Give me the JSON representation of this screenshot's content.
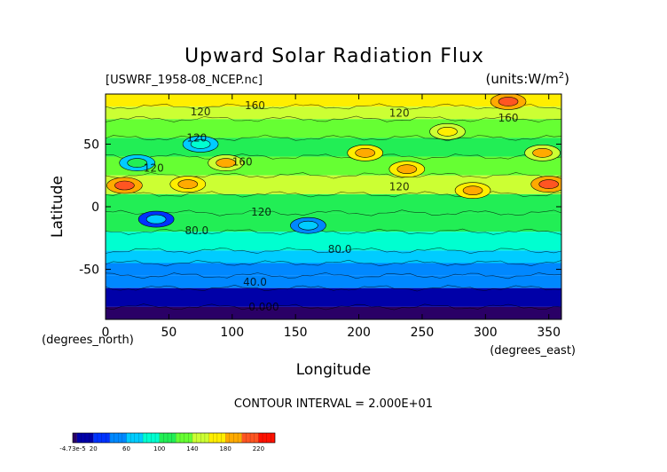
{
  "chart_data": {
    "type": "heatmap",
    "title": "Upward Solar Radiation Flux",
    "subtitle_left": "[USWRF_1958-08_NCEP.nc]",
    "subtitle_right": "(units:W/m^2)",
    "xlabel": "Longitude",
    "ylabel": "Latitude",
    "x_unit_note": "(degrees_east)",
    "y_unit_note": "(degrees_north)",
    "xlim": [
      0,
      360
    ],
    "ylim": [
      -90,
      90
    ],
    "xticks": [
      "0",
      "50",
      "100",
      "150",
      "200",
      "250",
      "300",
      "350"
    ],
    "yticks": [
      "50",
      "0",
      "-50"
    ],
    "contour_interval_text": "CONTOUR INTERVAL = 2.000E+01",
    "contour_labels": [
      {
        "text": "160",
        "lon": 118,
        "lat": 78
      },
      {
        "text": "120",
        "lon": 75,
        "lat": 73
      },
      {
        "text": "120",
        "lon": 232,
        "lat": 72
      },
      {
        "text": "160",
        "lon": 318,
        "lat": 68
      },
      {
        "text": "120",
        "lon": 72,
        "lat": 52
      },
      {
        "text": "160",
        "lon": 108,
        "lat": 33
      },
      {
        "text": "120",
        "lon": 38,
        "lat": 28
      },
      {
        "text": "120",
        "lon": 232,
        "lat": 13
      },
      {
        "text": "120",
        "lon": 123,
        "lat": -7
      },
      {
        "text": "80.0",
        "lon": 72,
        "lat": -22
      },
      {
        "text": "80.0",
        "lon": 185,
        "lat": -37
      },
      {
        "text": "40.0",
        "lon": 118,
        "lat": -63
      },
      {
        "text": "0.000",
        "lon": 125,
        "lat": -83
      }
    ],
    "colorbar": {
      "min_label": "-4.73e-5",
      "tick_labels": [
        "20",
        "60",
        "100",
        "140",
        "180",
        "220"
      ],
      "stops": [
        {
          "value": -5,
          "color": "#2a0066"
        },
        {
          "value": 0,
          "color": "#0000a8"
        },
        {
          "value": 20,
          "color": "#0033ff"
        },
        {
          "value": 40,
          "color": "#0088ff"
        },
        {
          "value": 60,
          "color": "#00ccff"
        },
        {
          "value": 80,
          "color": "#00ffd0"
        },
        {
          "value": 100,
          "color": "#22ee55"
        },
        {
          "value": 120,
          "color": "#66ff33"
        },
        {
          "value": 140,
          "color": "#ccff33"
        },
        {
          "value": 160,
          "color": "#ffee00"
        },
        {
          "value": 180,
          "color": "#ffaa00"
        },
        {
          "value": 200,
          "color": "#ff5522"
        },
        {
          "value": 220,
          "color": "#ff1100"
        },
        {
          "value": 240,
          "color": "#ffbbcc"
        }
      ]
    },
    "latitude_bands": [
      {
        "lat_from": 90,
        "lat_to": 80,
        "value": 175
      },
      {
        "lat_from": 80,
        "lat_to": 70,
        "value": 150
      },
      {
        "lat_from": 70,
        "lat_to": 55,
        "value": 125
      },
      {
        "lat_from": 55,
        "lat_to": 40,
        "value": 110
      },
      {
        "lat_from": 40,
        "lat_to": 25,
        "value": 135
      },
      {
        "lat_from": 25,
        "lat_to": 10,
        "value": 140
      },
      {
        "lat_from": 10,
        "lat_to": -5,
        "value": 110
      },
      {
        "lat_from": -5,
        "lat_to": -20,
        "value": 100
      },
      {
        "lat_from": -20,
        "lat_to": -35,
        "value": 88
      },
      {
        "lat_from": -35,
        "lat_to": -45,
        "value": 72
      },
      {
        "lat_from": -45,
        "lat_to": -55,
        "value": 58
      },
      {
        "lat_from": -55,
        "lat_to": -65,
        "value": 40
      },
      {
        "lat_from": -65,
        "lat_to": -80,
        "value": 15
      },
      {
        "lat_from": -80,
        "lat_to": -90,
        "value": -2
      }
    ],
    "hotspots": [
      {
        "lon": 15,
        "lat": 17,
        "value": 215
      },
      {
        "lon": 65,
        "lat": 18,
        "value": 195
      },
      {
        "lon": 95,
        "lat": 35,
        "value": 180
      },
      {
        "lon": 205,
        "lat": 43,
        "value": 185
      },
      {
        "lon": 290,
        "lat": 13,
        "value": 190
      },
      {
        "lon": 350,
        "lat": 18,
        "value": 205
      },
      {
        "lon": 318,
        "lat": 84,
        "value": 210
      },
      {
        "lon": 238,
        "lat": 30,
        "value": 195
      },
      {
        "lon": 345,
        "lat": 43,
        "value": 180
      },
      {
        "lon": 270,
        "lat": 60,
        "value": 175
      },
      {
        "lon": 75,
        "lat": 50,
        "value": 90
      },
      {
        "lon": 25,
        "lat": 35,
        "value": 100
      },
      {
        "lon": 160,
        "lat": -15,
        "value": 70
      },
      {
        "lon": 40,
        "lat": -10,
        "value": 60
      }
    ]
  }
}
